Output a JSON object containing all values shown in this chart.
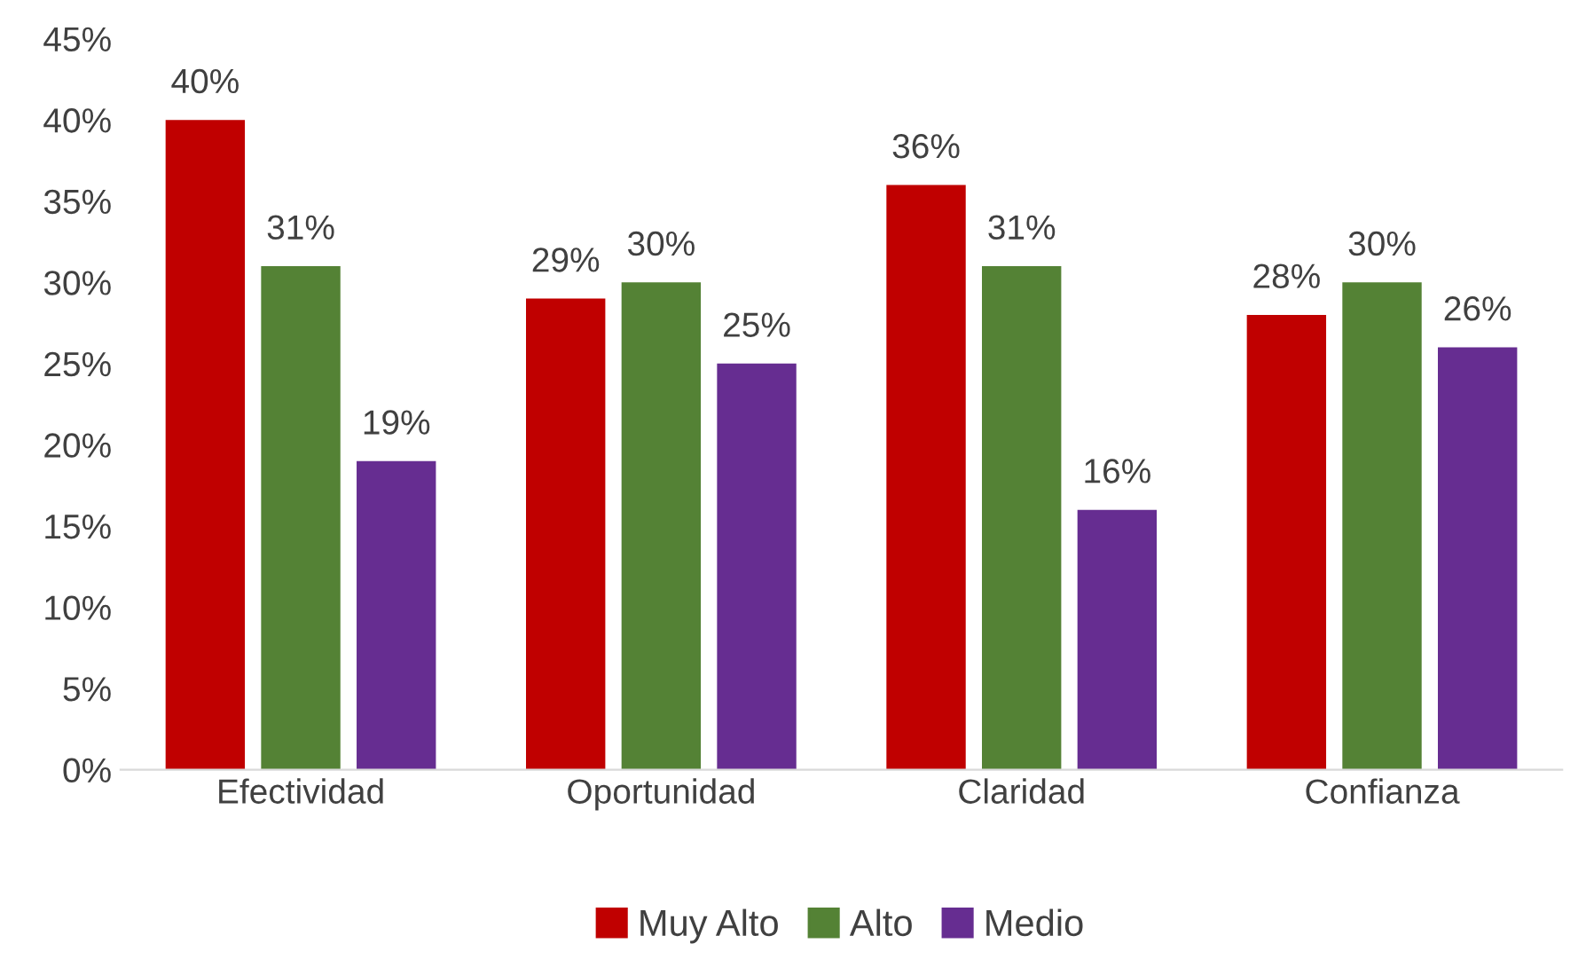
{
  "chart_data": {
    "type": "bar",
    "categories": [
      "Efectividad",
      "Oportunidad",
      "Claridad",
      "Confianza"
    ],
    "series": [
      {
        "name": "Muy Alto",
        "color": "#c00000",
        "values": [
          40,
          29,
          36,
          28
        ],
        "value_labels": [
          "40%",
          "29%",
          "36%",
          "28%"
        ]
      },
      {
        "name": "Alto",
        "color": "#548235",
        "values": [
          31,
          30,
          31,
          30
        ],
        "value_labels": [
          "31%",
          "30%",
          "31%",
          "30%"
        ]
      },
      {
        "name": "Medio",
        "color": "#662d91",
        "values": [
          19,
          25,
          16,
          26
        ],
        "value_labels": [
          "19%",
          "25%",
          "16%",
          "26%"
        ]
      }
    ],
    "ylim": [
      0,
      45
    ],
    "yticks": [
      {
        "value": 0,
        "label": "0%"
      },
      {
        "value": 5,
        "label": "5%"
      },
      {
        "value": 10,
        "label": "10%"
      },
      {
        "value": 15,
        "label": "15%"
      },
      {
        "value": 20,
        "label": "20%"
      },
      {
        "value": 25,
        "label": "25%"
      },
      {
        "value": 30,
        "label": "30%"
      },
      {
        "value": 35,
        "label": "35%"
      },
      {
        "value": 40,
        "label": "40%"
      },
      {
        "value": 45,
        "label": "45%"
      }
    ],
    "grid": false,
    "legend": "bottom"
  }
}
